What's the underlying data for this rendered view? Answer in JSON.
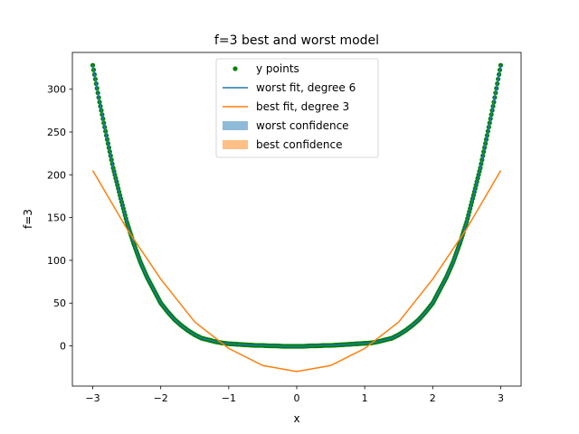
{
  "chart_data": {
    "type": "line",
    "title": "f=3 best and worst model",
    "xlabel": "x",
    "ylabel": "f=3",
    "xlim": [
      -3.3,
      3.3
    ],
    "ylim": [
      -47,
      343
    ],
    "xticks": [
      -3,
      -2,
      -1,
      0,
      1,
      2,
      3
    ],
    "xtick_labels": [
      "−3",
      "−2",
      "−1",
      "0",
      "1",
      "2",
      "3"
    ],
    "yticks": [
      0,
      50,
      100,
      150,
      200,
      250,
      300
    ],
    "ytick_labels": [
      "0",
      "50",
      "100",
      "150",
      "200",
      "250",
      "300"
    ],
    "grid": false,
    "legend_position": "upper center",
    "legend": [
      {
        "label": "y points",
        "kind": "marker",
        "color": "#008000"
      },
      {
        "label": "worst fit, degree 6",
        "kind": "line",
        "color": "#1f77b4"
      },
      {
        "label": "best fit, degree 3",
        "kind": "line",
        "color": "#ff7f0e"
      },
      {
        "label": "worst confidence",
        "kind": "patch",
        "color": "#1f77b4"
      },
      {
        "label": "best confidence",
        "kind": "patch",
        "color": "#ff7f0e"
      }
    ],
    "series": [
      {
        "name": "y points",
        "style": "markers",
        "color": "#008000",
        "x": [
          -3.0,
          -2.9,
          -2.8,
          -2.7,
          -2.6,
          -2.5,
          -2.4,
          -2.3,
          -2.2,
          -2.1,
          -2.0,
          -1.9,
          -1.8,
          -1.7,
          -1.6,
          -1.5,
          -1.4,
          -1.3,
          -1.2,
          -1.1,
          -1.0,
          -0.9,
          -0.8,
          -0.7,
          -0.6,
          -0.5,
          -0.4,
          -0.3,
          -0.2,
          -0.1,
          0.0,
          0.1,
          0.2,
          0.3,
          0.4,
          0.5,
          0.6,
          0.7,
          0.8,
          0.9,
          1.0,
          1.1,
          1.2,
          1.3,
          1.4,
          1.5,
          1.6,
          1.7,
          1.8,
          1.9,
          2.0,
          2.1,
          2.2,
          2.3,
          2.4,
          2.5,
          2.6,
          2.7,
          2.8,
          2.9,
          3.0
        ],
        "y": [
          328,
          285,
          246,
          208,
          176,
          145,
          120,
          98,
          80,
          65,
          50,
          40,
          31,
          24,
          18,
          13,
          9,
          7,
          5,
          3.5,
          2.5,
          2,
          1.5,
          1,
          0.5,
          0.5,
          0,
          0,
          -0.5,
          -0.5,
          -0.5,
          -0.5,
          0,
          0,
          0.5,
          0.5,
          1,
          1.5,
          2,
          2.5,
          3,
          3.5,
          5,
          7,
          9,
          13,
          18,
          24,
          31,
          40,
          50,
          65,
          80,
          98,
          120,
          145,
          176,
          208,
          246,
          285,
          328
        ]
      },
      {
        "name": "worst fit, degree 6",
        "style": "line",
        "color": "#1f77b4",
        "x": [
          -3.0,
          -2.9,
          -2.8,
          -2.7,
          -2.6,
          -2.5,
          -2.4,
          -2.3,
          -2.2,
          -2.1,
          -2.0,
          -1.9,
          -1.8,
          -1.7,
          -1.6,
          -1.5,
          -1.4,
          -1.3,
          -1.2,
          -1.1,
          -1.0,
          -0.9,
          -0.8,
          -0.7,
          -0.6,
          -0.5,
          -0.4,
          -0.3,
          -0.2,
          -0.1,
          0.0,
          0.1,
          0.2,
          0.3,
          0.4,
          0.5,
          0.6,
          0.7,
          0.8,
          0.9,
          1.0,
          1.1,
          1.2,
          1.3,
          1.4,
          1.5,
          1.6,
          1.7,
          1.8,
          1.9,
          2.0,
          2.1,
          2.2,
          2.3,
          2.4,
          2.5,
          2.6,
          2.7,
          2.8,
          2.9,
          3.0
        ],
        "y": [
          328,
          285,
          246,
          208,
          176,
          145,
          120,
          98,
          80,
          65,
          50,
          40,
          31,
          24,
          18,
          13,
          9,
          7,
          5,
          3.5,
          2.5,
          2,
          1.5,
          1,
          0.5,
          0.5,
          0,
          0,
          -0.5,
          -0.5,
          -0.5,
          -0.5,
          0,
          0,
          0.5,
          0.5,
          1,
          1.5,
          2,
          2.5,
          3,
          3.5,
          5,
          7,
          9,
          13,
          18,
          24,
          31,
          40,
          50,
          65,
          80,
          98,
          120,
          145,
          176,
          208,
          246,
          285,
          328
        ]
      },
      {
        "name": "best fit, degree 3",
        "style": "line",
        "color": "#ff7f0e",
        "x": [
          -3.0,
          -2.5,
          -2.0,
          -1.5,
          -1.0,
          -0.5,
          0.0,
          0.5,
          1.0,
          1.5,
          2.0,
          2.5,
          3.0
        ],
        "y": [
          205,
          137,
          78,
          28,
          -3,
          -23,
          -30,
          -23,
          -3,
          28,
          78,
          137,
          205
        ]
      }
    ]
  }
}
